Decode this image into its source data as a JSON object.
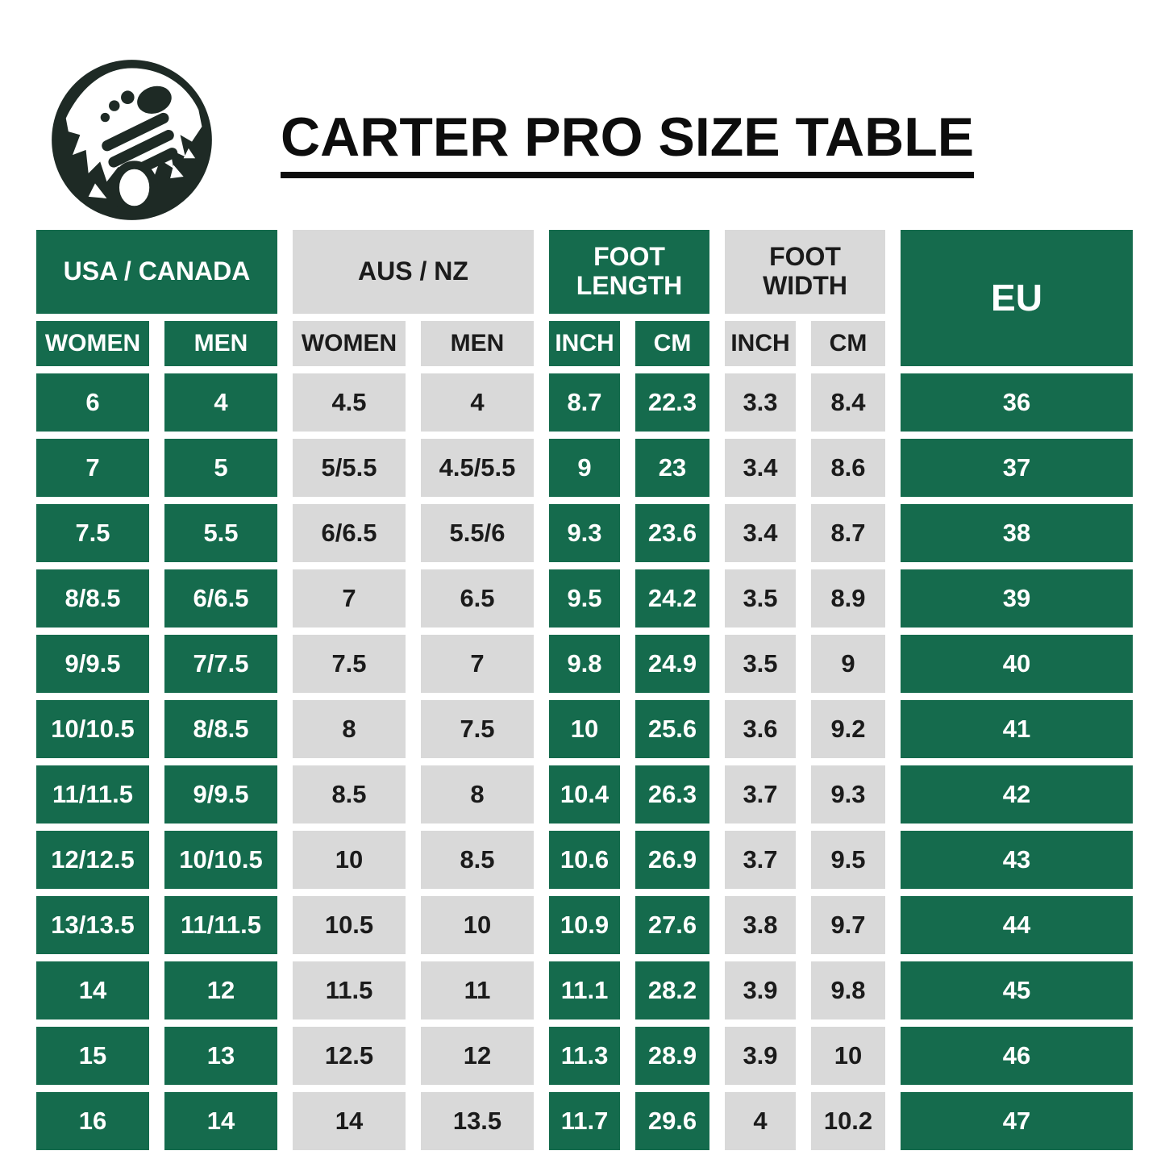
{
  "header": {
    "title": "CARTER PRO SIZE TABLE",
    "logo": "barefoot-footprint-mountain-logo"
  },
  "colors": {
    "green": "#156B4D",
    "gray": "#D9D9D9",
    "logo_dark": "#1E2A25",
    "title_black": "#0D0D0D"
  },
  "chart_data": {
    "type": "table",
    "title": "CARTER PRO SIZE TABLE",
    "column_groups": [
      {
        "label": "USA / CANADA",
        "color": "green",
        "subcolumns": [
          "WOMEN",
          "MEN"
        ]
      },
      {
        "label": "AUS / NZ",
        "color": "gray",
        "subcolumns": [
          "WOMEN",
          "MEN"
        ]
      },
      {
        "label": "FOOT LENGTH",
        "color": "green",
        "subcolumns": [
          "INCH",
          "CM"
        ]
      },
      {
        "label": "FOOT WIDTH",
        "color": "gray",
        "subcolumns": [
          "INCH",
          "CM"
        ]
      },
      {
        "label": "EU",
        "color": "green",
        "subcolumns": []
      }
    ],
    "columns": [
      "USA/CANADA WOMEN",
      "USA/CANADA MEN",
      "AUS/NZ WOMEN",
      "AUS/NZ MEN",
      "FOOT LENGTH INCH",
      "FOOT LENGTH CM",
      "FOOT WIDTH INCH",
      "FOOT WIDTH CM",
      "EU"
    ],
    "rows": [
      [
        "6",
        "4",
        "4.5",
        "4",
        "8.7",
        "22.3",
        "3.3",
        "8.4",
        "36"
      ],
      [
        "7",
        "5",
        "5/5.5",
        "4.5/5.5",
        "9",
        "23",
        "3.4",
        "8.6",
        "37"
      ],
      [
        "7.5",
        "5.5",
        "6/6.5",
        "5.5/6",
        "9.3",
        "23.6",
        "3.4",
        "8.7",
        "38"
      ],
      [
        "8/8.5",
        "6/6.5",
        "7",
        "6.5",
        "9.5",
        "24.2",
        "3.5",
        "8.9",
        "39"
      ],
      [
        "9/9.5",
        "7/7.5",
        "7.5",
        "7",
        "9.8",
        "24.9",
        "3.5",
        "9",
        "40"
      ],
      [
        "10/10.5",
        "8/8.5",
        "8",
        "7.5",
        "10",
        "25.6",
        "3.6",
        "9.2",
        "41"
      ],
      [
        "11/11.5",
        "9/9.5",
        "8.5",
        "8",
        "10.4",
        "26.3",
        "3.7",
        "9.3",
        "42"
      ],
      [
        "12/12.5",
        "10/10.5",
        "10",
        "8.5",
        "10.6",
        "26.9",
        "3.7",
        "9.5",
        "43"
      ],
      [
        "13/13.5",
        "11/11.5",
        "10.5",
        "10",
        "10.9",
        "27.6",
        "3.8",
        "9.7",
        "44"
      ],
      [
        "14",
        "12",
        "11.5",
        "11",
        "11.1",
        "28.2",
        "3.9",
        "9.8",
        "45"
      ],
      [
        "15",
        "13",
        "12.5",
        "12",
        "11.3",
        "28.9",
        "3.9",
        "10",
        "46"
      ],
      [
        "16",
        "14",
        "14",
        "13.5",
        "11.7",
        "29.6",
        "4",
        "10.2",
        "47"
      ]
    ]
  }
}
